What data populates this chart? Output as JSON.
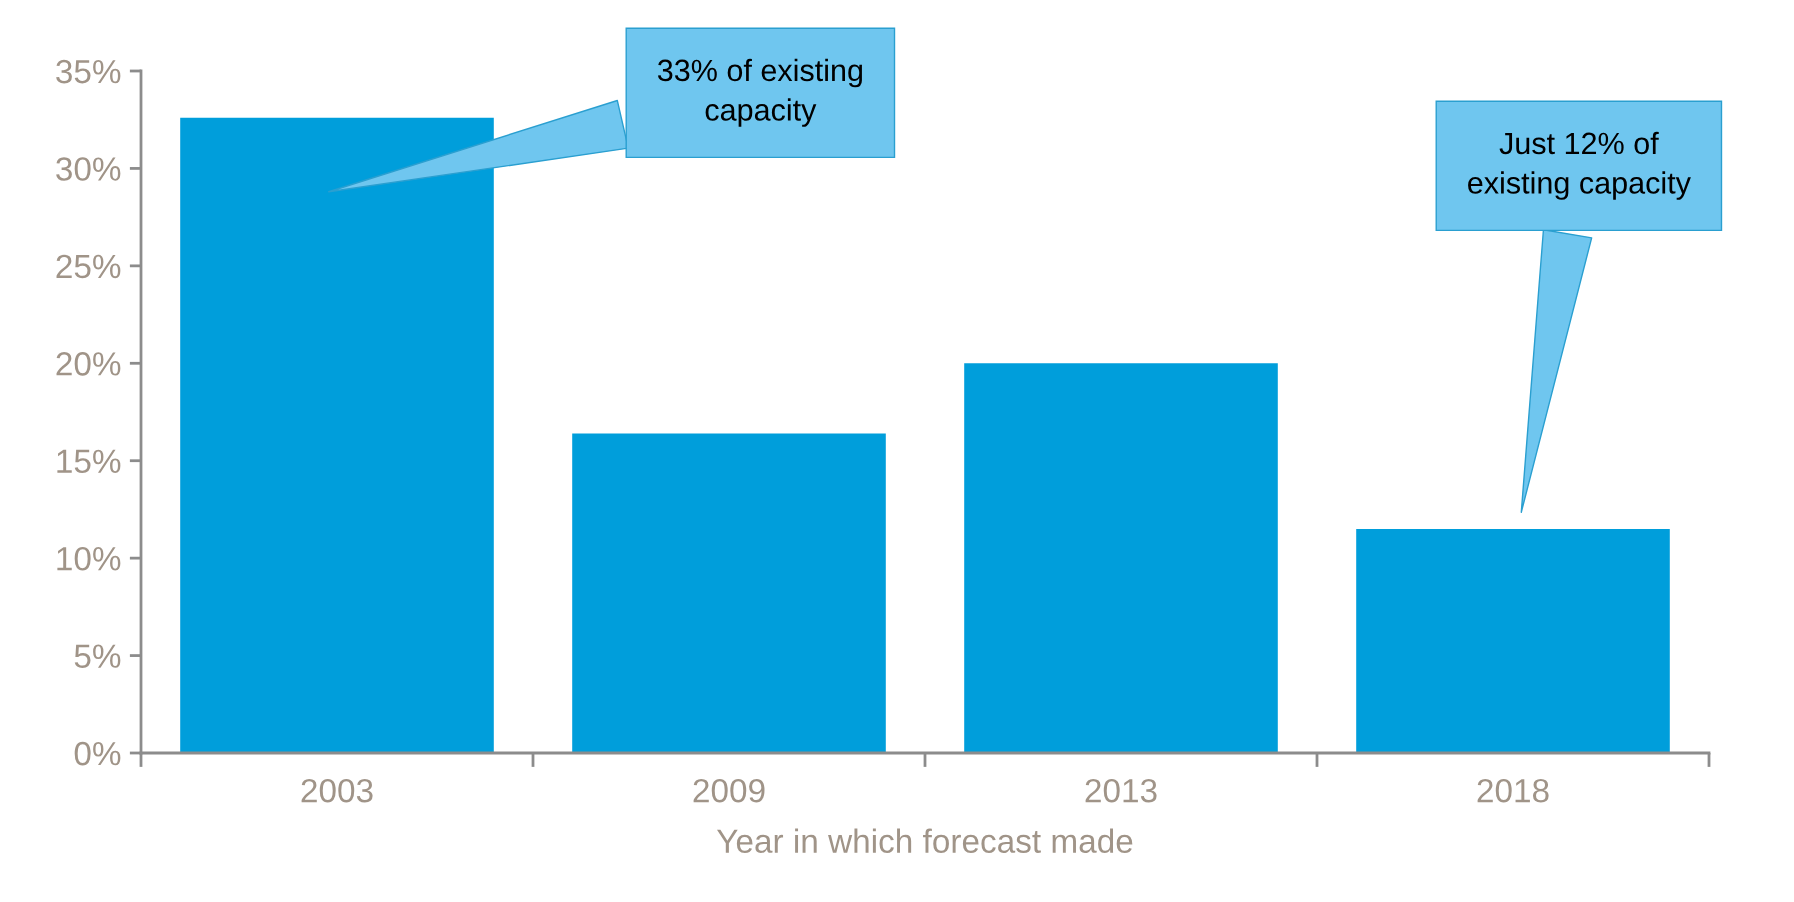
{
  "chart_data": {
    "type": "bar",
    "xlabel": "Year in which forecast made",
    "categories": [
      "2003",
      "2009",
      "2013",
      "2018"
    ],
    "values": [
      32.6,
      16.4,
      20.0,
      11.5
    ],
    "color": "#009edb",
    "ylim": [
      0,
      35
    ],
    "yticks": [
      {
        "value": 0,
        "label": "0%"
      },
      {
        "value": 5,
        "label": "5%"
      },
      {
        "value": 10,
        "label": "10%"
      },
      {
        "value": 15,
        "label": "15%"
      },
      {
        "value": 20,
        "label": "20%"
      },
      {
        "value": 25,
        "label": "25%"
      },
      {
        "value": 30,
        "label": "30%"
      },
      {
        "value": 35,
        "label": "35%"
      }
    ],
    "grid": false,
    "legend": false,
    "annotations": [
      "33% of existing\ncapacity",
      "Just 12% of\nexisting capacity"
    ]
  }
}
